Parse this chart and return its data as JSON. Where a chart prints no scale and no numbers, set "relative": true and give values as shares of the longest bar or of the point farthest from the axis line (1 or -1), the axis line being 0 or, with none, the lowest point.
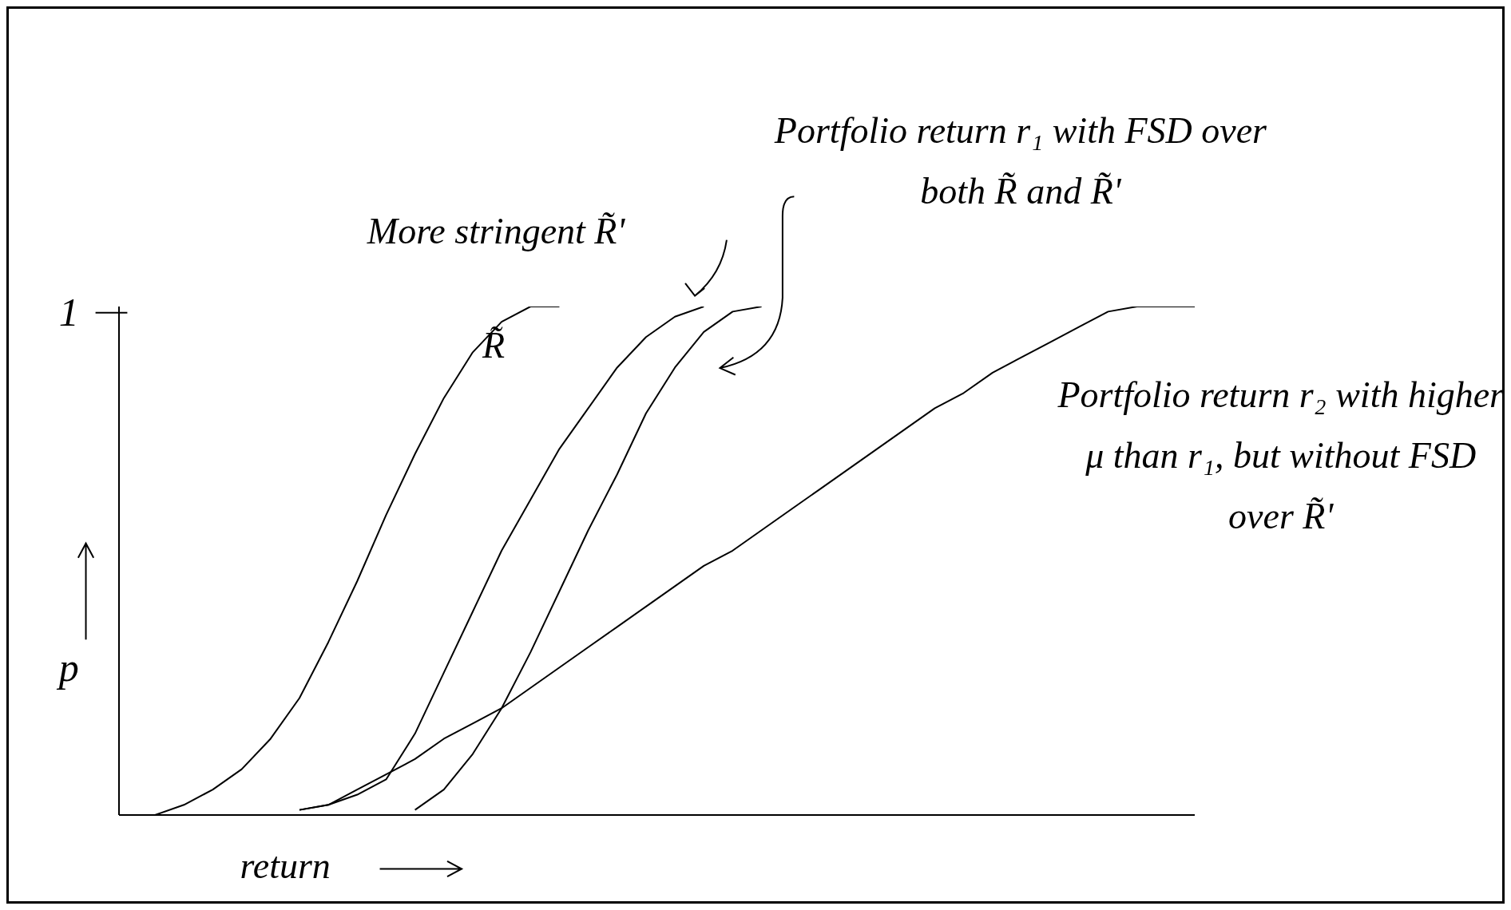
{
  "chart_data": {
    "type": "line",
    "relative": true,
    "xlabel": "return",
    "ylabel": "p",
    "legend": false,
    "marker": "none",
    "line_style": "solid",
    "grid": false,
    "annotations": [
      "1",
      "More stringent R̃'",
      "Portfolio return r₁ with FSD over both R̃ and R̃'",
      "Portfolio return r₂ with higher μ than r₁, but without FSD over R̃'"
    ],
    "categories": [
      null,
      null,
      null,
      null,
      null,
      null,
      null,
      null,
      null,
      null,
      null,
      null,
      null,
      null,
      null,
      null,
      null,
      null,
      null,
      null,
      null,
      null,
      null,
      null,
      null,
      null,
      null,
      null,
      null,
      null,
      null,
      null,
      null,
      null,
      null,
      null,
      null,
      null
    ],
    "series": [
      {
        "name": "R̃",
        "color": "#000000",
        "values": [
          null,
          0,
          0.02,
          0.05,
          0.09,
          0.15,
          0.23,
          0.34,
          0.46,
          0.59,
          0.71,
          0.82,
          0.91,
          0.97,
          1.0,
          1.0,
          null,
          null,
          null,
          null,
          null,
          null,
          null,
          null,
          null,
          null,
          null,
          null,
          null,
          null,
          null,
          null,
          null,
          null,
          null,
          null,
          null,
          null
        ]
      },
      {
        "color": "#000000",
        "values": [
          null,
          null,
          null,
          null,
          null,
          null,
          0.01,
          0.02,
          0.04,
          0.07,
          0.16,
          0.28,
          0.4,
          0.52,
          0.62,
          0.72,
          0.8,
          0.88,
          0.94,
          0.98,
          1.0,
          null,
          null,
          null,
          null,
          null,
          null,
          null,
          null,
          null,
          null,
          null,
          null,
          null,
          null,
          null,
          null,
          null
        ]
      },
      {
        "color": "#000000",
        "values": [
          null,
          null,
          null,
          null,
          null,
          null,
          null,
          null,
          null,
          null,
          0.01,
          0.05,
          0.12,
          0.21,
          0.32,
          0.44,
          0.56,
          0.67,
          0.79,
          0.88,
          0.95,
          0.99,
          1.0,
          null,
          null,
          null,
          null,
          null,
          null,
          null,
          null,
          null,
          null,
          null,
          null,
          null,
          null,
          null
        ]
      },
      {
        "color": "#000000",
        "values": [
          null,
          null,
          null,
          null,
          null,
          null,
          0.01,
          0.02,
          0.05,
          0.08,
          0.11,
          0.15,
          0.18,
          0.21,
          0.25,
          0.29,
          0.33,
          0.37,
          0.41,
          0.45,
          0.49,
          0.52,
          0.56,
          0.6,
          0.64,
          0.68,
          0.72,
          0.76,
          0.8,
          0.83,
          0.87,
          0.9,
          0.93,
          0.96,
          0.99,
          1.0,
          1.0,
          1.0
        ]
      }
    ]
  }
}
